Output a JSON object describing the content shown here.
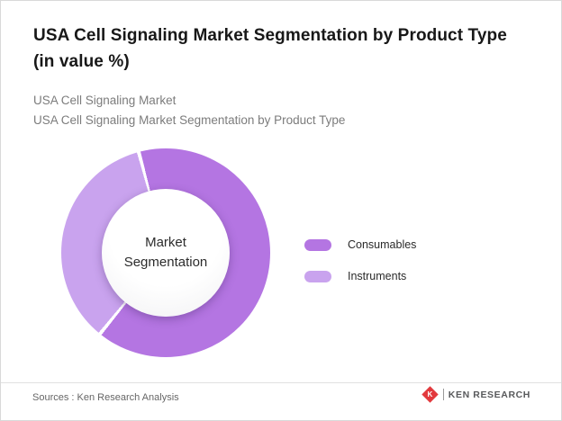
{
  "page": {
    "title": "USA Cell Signaling Market Segmentation by Product Type (in value %)",
    "subtitle_line1": "USA Cell Signaling Market",
    "subtitle_line2": "USA Cell Signaling Market Segmentation by Product Type",
    "footer": {
      "sources": "Sources : Ken Research Analysis",
      "brand": "KEN RESEARCH",
      "brand_icon_letter": "K",
      "brand_color": "#e2393d"
    }
  },
  "chart_data": {
    "type": "pie",
    "variant": "donut",
    "title": "USA Cell Signaling Market Segmentation by Product Type (in value %)",
    "center_label": "Market Segmentation",
    "categories": [
      "Consumables",
      "Instruments"
    ],
    "values": [
      65,
      35
    ],
    "colors": [
      "#b475e2",
      "#c9a3ee"
    ],
    "legend_position": "right",
    "start_angle_deg": -15,
    "values_note": "estimated from arc sweep; no data labels shown"
  }
}
